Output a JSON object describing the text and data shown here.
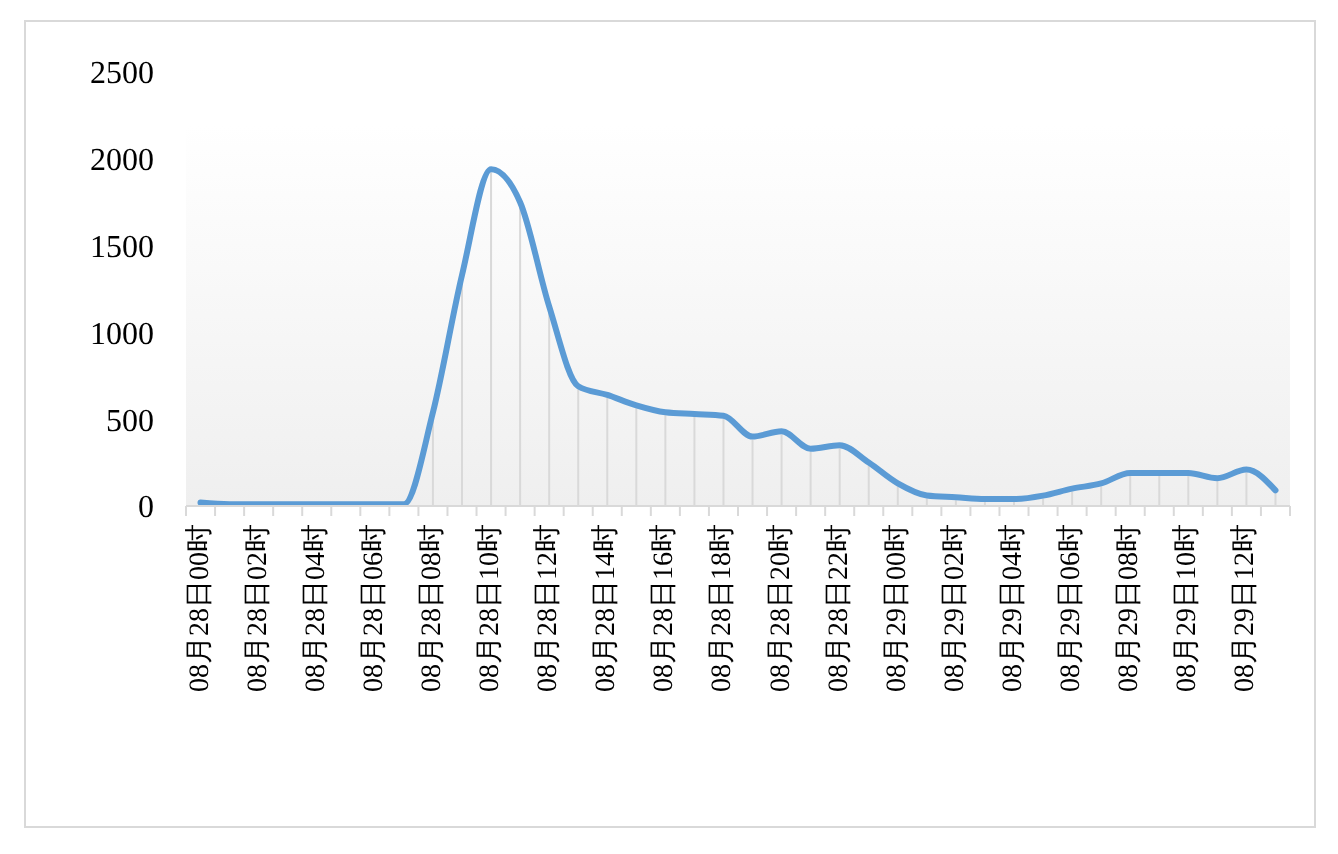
{
  "chart_data": {
    "type": "line",
    "categories": [
      "08月28日00时",
      null,
      "08月28日02时",
      null,
      "08月28日04时",
      null,
      "08月28日06时",
      null,
      "08月28日08时",
      null,
      "08月28日10时",
      null,
      "08月28日12时",
      null,
      "08月28日14时",
      null,
      "08月28日16时",
      null,
      "08月28日18时",
      null,
      "08月28日20时",
      null,
      "08月28日22时",
      null,
      "08月29日00时",
      null,
      "08月29日02时",
      null,
      "08月29日04时",
      null,
      "08月29日06时",
      null,
      "08月29日08时",
      null,
      "08月29日10时",
      null,
      "08月29日12时",
      null
    ],
    "values": [
      20,
      10,
      10,
      10,
      10,
      10,
      10,
      10,
      540,
      1330,
      1940,
      1750,
      1150,
      690,
      640,
      580,
      540,
      530,
      520,
      400,
      430,
      330,
      350,
      250,
      130,
      60,
      50,
      40,
      40,
      60,
      100,
      130,
      190,
      190,
      190,
      160,
      210,
      90
    ],
    "color": "#5b9bd5",
    "ylim": [
      0,
      2500
    ],
    "yticks": [
      0,
      500,
      1000,
      1500,
      2000,
      2500
    ],
    "marker": "none",
    "line_style": "solid"
  }
}
